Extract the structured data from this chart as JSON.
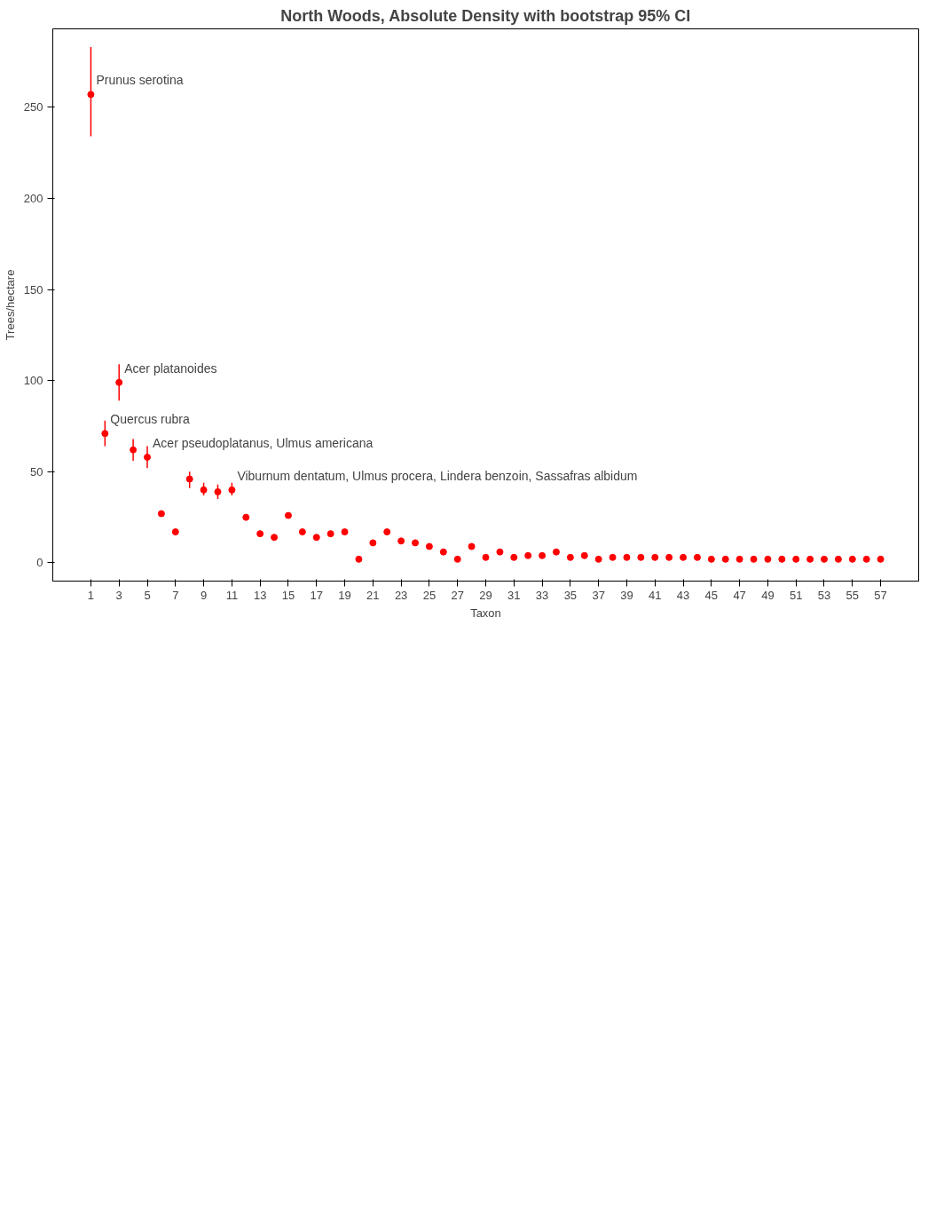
{
  "chart_data": {
    "type": "scatter",
    "title": "North Woods, Absolute Density with bootstrap 95% CI",
    "xlabel": "Taxon",
    "ylabel": "Trees/hectare",
    "x": [
      1,
      2,
      3,
      4,
      5,
      6,
      7,
      8,
      9,
      10,
      11,
      12,
      13,
      14,
      15,
      16,
      17,
      18,
      19,
      20,
      21,
      22,
      23,
      24,
      25,
      26,
      27,
      28,
      29,
      30,
      31,
      32,
      33,
      34,
      35,
      36,
      37,
      38,
      39,
      40,
      41,
      42,
      43,
      44,
      45,
      46,
      47,
      48,
      49,
      50,
      51,
      52,
      53,
      54,
      55,
      56,
      57
    ],
    "series": [
      {
        "color": "#ff0000",
        "values": [
          257,
          71,
          99,
          62,
          58,
          27,
          17,
          46,
          40,
          39,
          40,
          25,
          16,
          14,
          26,
          17,
          14,
          16,
          17,
          2,
          11,
          17,
          12,
          11,
          9,
          6,
          2,
          9,
          3,
          6,
          3,
          4,
          4,
          6,
          3,
          4,
          2,
          3,
          3,
          3,
          3,
          3,
          3,
          3,
          2,
          2,
          2,
          2,
          2,
          2,
          2,
          2,
          2,
          2,
          2,
          2,
          2
        ],
        "errors": [
          [
            234,
            283
          ],
          [
            64,
            78
          ],
          [
            89,
            109
          ],
          [
            56,
            68
          ],
          [
            52,
            64
          ],
          null,
          null,
          [
            41,
            50
          ],
          [
            37,
            44
          ],
          [
            35,
            43
          ],
          [
            37,
            44
          ],
          null,
          null,
          null,
          null,
          null,
          null,
          null,
          null,
          null,
          null,
          null,
          null,
          null,
          null,
          null,
          null,
          null,
          null,
          null,
          null,
          null,
          null,
          null,
          null,
          null,
          null,
          null,
          null,
          null,
          null,
          null,
          null,
          null,
          null,
          null,
          null,
          null,
          null,
          null,
          null,
          null,
          null,
          null,
          null,
          null,
          null
        ]
      }
    ],
    "annotations": [
      {
        "text": "Prunus serotina",
        "x": 1,
        "y": 257
      },
      {
        "text": "Quercus rubra",
        "x": 2,
        "y": 71
      },
      {
        "text": "Acer platanoides",
        "x": 3,
        "y": 99
      },
      {
        "text": "Acer pseudoplatanus, Ulmus americana",
        "x": 5,
        "y": 58
      },
      {
        "text": "Viburnum dentatum, Ulmus procera, Lindera benzoin, Sassafras albidum",
        "x": 11,
        "y": 40
      }
    ],
    "xlim": [
      -1.7,
      59.7
    ],
    "ylim": [
      -10,
      293
    ],
    "xticks": [
      1,
      3,
      5,
      7,
      9,
      11,
      13,
      15,
      17,
      19,
      21,
      23,
      25,
      27,
      29,
      31,
      33,
      35,
      37,
      39,
      41,
      43,
      45,
      47,
      49,
      51,
      53,
      55,
      57
    ],
    "yticks": [
      0,
      50,
      100,
      150,
      200,
      250
    ],
    "grid": false,
    "marker": "circle"
  }
}
